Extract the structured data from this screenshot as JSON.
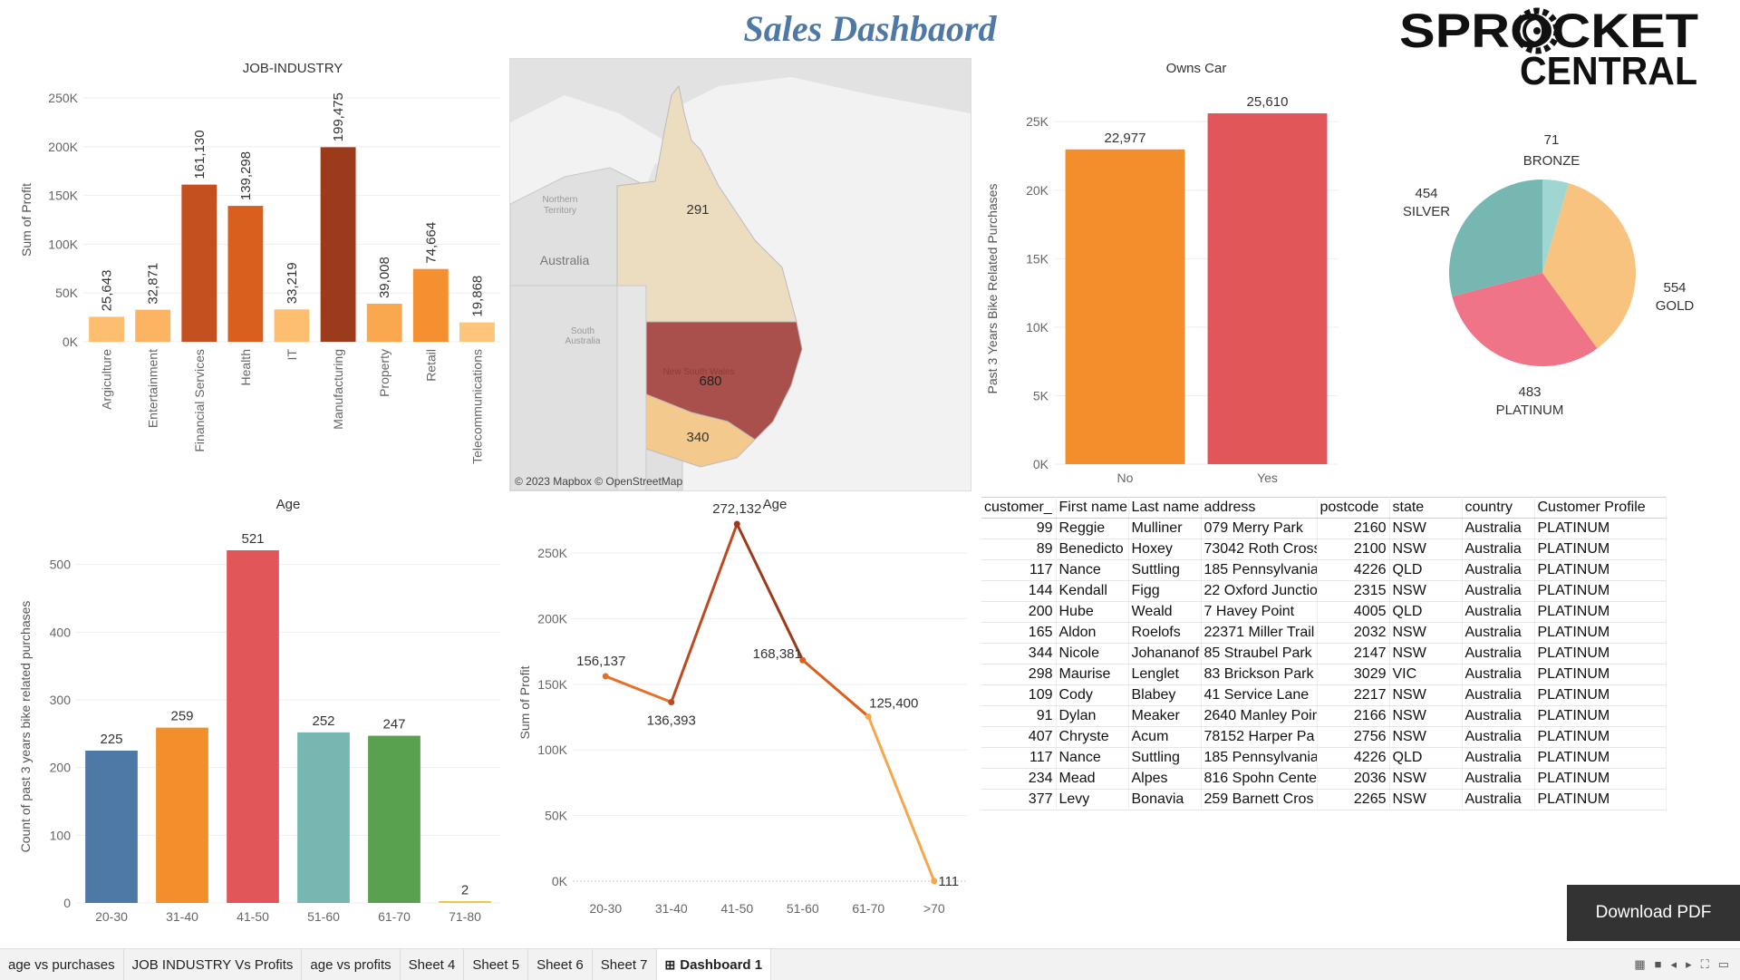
{
  "dashboard_title": "Sales Dashbaord",
  "logo": {
    "line1": "SPROCKET",
    "line2": "CENTRAL"
  },
  "download_label": "Download PDF",
  "map": {
    "credit": "© 2023 Mapbox © OpenStreetMap",
    "country_label": "Australia",
    "nt_label": [
      "Northern",
      "Territory"
    ],
    "sa_label": [
      "South",
      "Australia"
    ],
    "nsw_label": "New South Wales",
    "qld_value": "291",
    "nsw_value": "680",
    "vic_value": "340"
  },
  "tabs": [
    {
      "label": "age vs purchases",
      "active": false
    },
    {
      "label": "JOB INDUSTRY Vs Profits",
      "active": false
    },
    {
      "label": "age vs profits",
      "active": false
    },
    {
      "label": "Sheet 4",
      "active": false
    },
    {
      "label": "Sheet 5",
      "active": false
    },
    {
      "label": "Sheet 6",
      "active": false
    },
    {
      "label": "Sheet 7",
      "active": false
    },
    {
      "label": "Dashboard 1",
      "active": true
    }
  ],
  "table": {
    "headers": [
      "customer_",
      "First name",
      "Last name",
      "address",
      "postcode",
      "state",
      "country",
      "Customer Profile"
    ],
    "rows": [
      [
        "99",
        "Reggie",
        "Mulliner",
        "079 Merry Park",
        "2160",
        "NSW",
        "Australia",
        "PLATINUM"
      ],
      [
        "89",
        "Benedicto",
        "Hoxey",
        "73042 Roth Cross",
        "2100",
        "NSW",
        "Australia",
        "PLATINUM"
      ],
      [
        "117",
        "Nance",
        "Suttling",
        "185 Pennsylvania",
        "4226",
        "QLD",
        "Australia",
        "PLATINUM"
      ],
      [
        "144",
        "Kendall",
        "Figg",
        "22 Oxford Junctio",
        "2315",
        "NSW",
        "Australia",
        "PLATINUM"
      ],
      [
        "200",
        "Hube",
        "Weald",
        "7 Havey Point",
        "4005",
        "QLD",
        "Australia",
        "PLATINUM"
      ],
      [
        "165",
        "Aldon",
        "Roelofs",
        "22371 Miller Trail",
        "2032",
        "NSW",
        "Australia",
        "PLATINUM"
      ],
      [
        "344",
        "Nicole",
        "Johananof",
        "85 Straubel Park",
        "2147",
        "NSW",
        "Australia",
        "PLATINUM"
      ],
      [
        "298",
        "Maurise",
        "Lenglet",
        "83 Brickson Park",
        "3029",
        "VIC",
        "Australia",
        "PLATINUM"
      ],
      [
        "109",
        "Cody",
        "Blabey",
        "41 Service Lane",
        "2217",
        "NSW",
        "Australia",
        "PLATINUM"
      ],
      [
        "91",
        "Dylan",
        "Meaker",
        "2640 Manley Poin",
        "2166",
        "NSW",
        "Australia",
        "PLATINUM"
      ],
      [
        "407",
        "Chryste",
        "Acum",
        "78152 Harper Pa",
        "2756",
        "NSW",
        "Australia",
        "PLATINUM"
      ],
      [
        "117",
        "Nance",
        "Suttling",
        "185 Pennsylvania",
        "4226",
        "QLD",
        "Australia",
        "PLATINUM"
      ],
      [
        "234",
        "Mead",
        "Alpes",
        "816 Spohn Cente",
        "2036",
        "NSW",
        "Australia",
        "PLATINUM"
      ],
      [
        "377",
        "Levy",
        "Bonavia",
        "259 Barnett Cros",
        "2265",
        "NSW",
        "Australia",
        "PLATINUM"
      ]
    ]
  },
  "chart_data": [
    {
      "id": "job",
      "type": "bar",
      "title": "JOB-INDUSTRY",
      "ylabel": "Sum of Profit",
      "xlabel": "",
      "categories": [
        "Argiculture",
        "Entertainment",
        "Financial Services",
        "Health",
        "IT",
        "Manufacturing",
        "Property",
        "Retail",
        "Telecommunications"
      ],
      "values": [
        25643,
        32871,
        161130,
        139298,
        33219,
        199475,
        39008,
        74664,
        19868
      ],
      "data_labels": [
        "25,643",
        "32,871",
        "161,130",
        "139,298",
        "33,219",
        "199,475",
        "39,008",
        "74,664",
        "19,868"
      ],
      "colors": [
        "#fdbf6f",
        "#fdb462",
        "#c4501f",
        "#d95f1f",
        "#fdbf6f",
        "#9c3a1c",
        "#f9a84f",
        "#f4902f",
        "#fdc47a"
      ],
      "yticks": [
        0,
        50000,
        100000,
        150000,
        200000,
        250000
      ],
      "ytick_labels": [
        "0K",
        "50K",
        "100K",
        "150K",
        "200K",
        "250K"
      ],
      "ylim": [
        0,
        250000
      ],
      "grid": true
    },
    {
      "id": "car",
      "type": "bar",
      "title": "Owns Car",
      "ylabel": "Past 3 Years Bike Related Purchases",
      "xlabel": "",
      "categories": [
        "No",
        "Yes"
      ],
      "values": [
        22977,
        25610
      ],
      "data_labels": [
        "22,977",
        "25,610"
      ],
      "colors": [
        "#f28e2b",
        "#e15759"
      ],
      "yticks": [
        0,
        5000,
        10000,
        15000,
        20000,
        25000
      ],
      "ytick_labels": [
        "0K",
        "5K",
        "10K",
        "15K",
        "20K",
        "25K"
      ],
      "ylim": [
        0,
        25610
      ],
      "grid": true
    },
    {
      "id": "pie",
      "type": "pie",
      "title": "",
      "slices": [
        {
          "name": "BRONZE",
          "value": 71,
          "label": "71",
          "color": "#9fd6d2"
        },
        {
          "name": "GOLD",
          "value": 554,
          "label": "554",
          "color": "#f7c37f"
        },
        {
          "name": "PLATINUM",
          "value": 483,
          "label": "483",
          "color": "#f07488"
        },
        {
          "name": "SILVER",
          "value": 454,
          "label": "454",
          "color": "#76b7b2"
        }
      ]
    },
    {
      "id": "agebar",
      "type": "bar",
      "title": "Age",
      "ylabel": "Count of past 3 years bike related purchases",
      "xlabel": "",
      "categories": [
        "20-30",
        "31-40",
        "41-50",
        "51-60",
        "61-70",
        "71-80"
      ],
      "values": [
        225,
        259,
        521,
        252,
        247,
        2
      ],
      "data_labels": [
        "225",
        "259",
        "521",
        "252",
        "247",
        "2"
      ],
      "colors": [
        "#4e79a7",
        "#f28e2b",
        "#e15759",
        "#76b7b2",
        "#59a14f",
        "#edc948"
      ],
      "yticks": [
        0,
        100,
        200,
        300,
        400,
        500
      ],
      "ytick_labels": [
        "0",
        "100",
        "200",
        "300",
        "400",
        "500"
      ],
      "ylim": [
        0,
        521
      ],
      "grid": true
    },
    {
      "id": "ageline",
      "type": "line",
      "title": "Age",
      "ylabel": "Sum of Profit",
      "xlabel": "",
      "categories": [
        "20-30",
        "31-40",
        "41-50",
        "51-60",
        "61-70",
        ">70"
      ],
      "values": [
        156137,
        136393,
        272132,
        168381,
        125400,
        111
      ],
      "data_labels": [
        "156,137",
        "136,393",
        "272,132",
        "168,381",
        "125,400",
        "111"
      ],
      "yticks": [
        0,
        50000,
        100000,
        150000,
        200000,
        250000
      ],
      "ytick_labels": [
        "0K",
        "50K",
        "100K",
        "150K",
        "200K",
        "250K"
      ],
      "ylim": [
        0,
        272132
      ],
      "segment_colors": [
        "#e8702a",
        "#c0481d",
        "#9c3a1c",
        "#d9601f",
        "#f8a64c"
      ],
      "grid": true
    }
  ]
}
